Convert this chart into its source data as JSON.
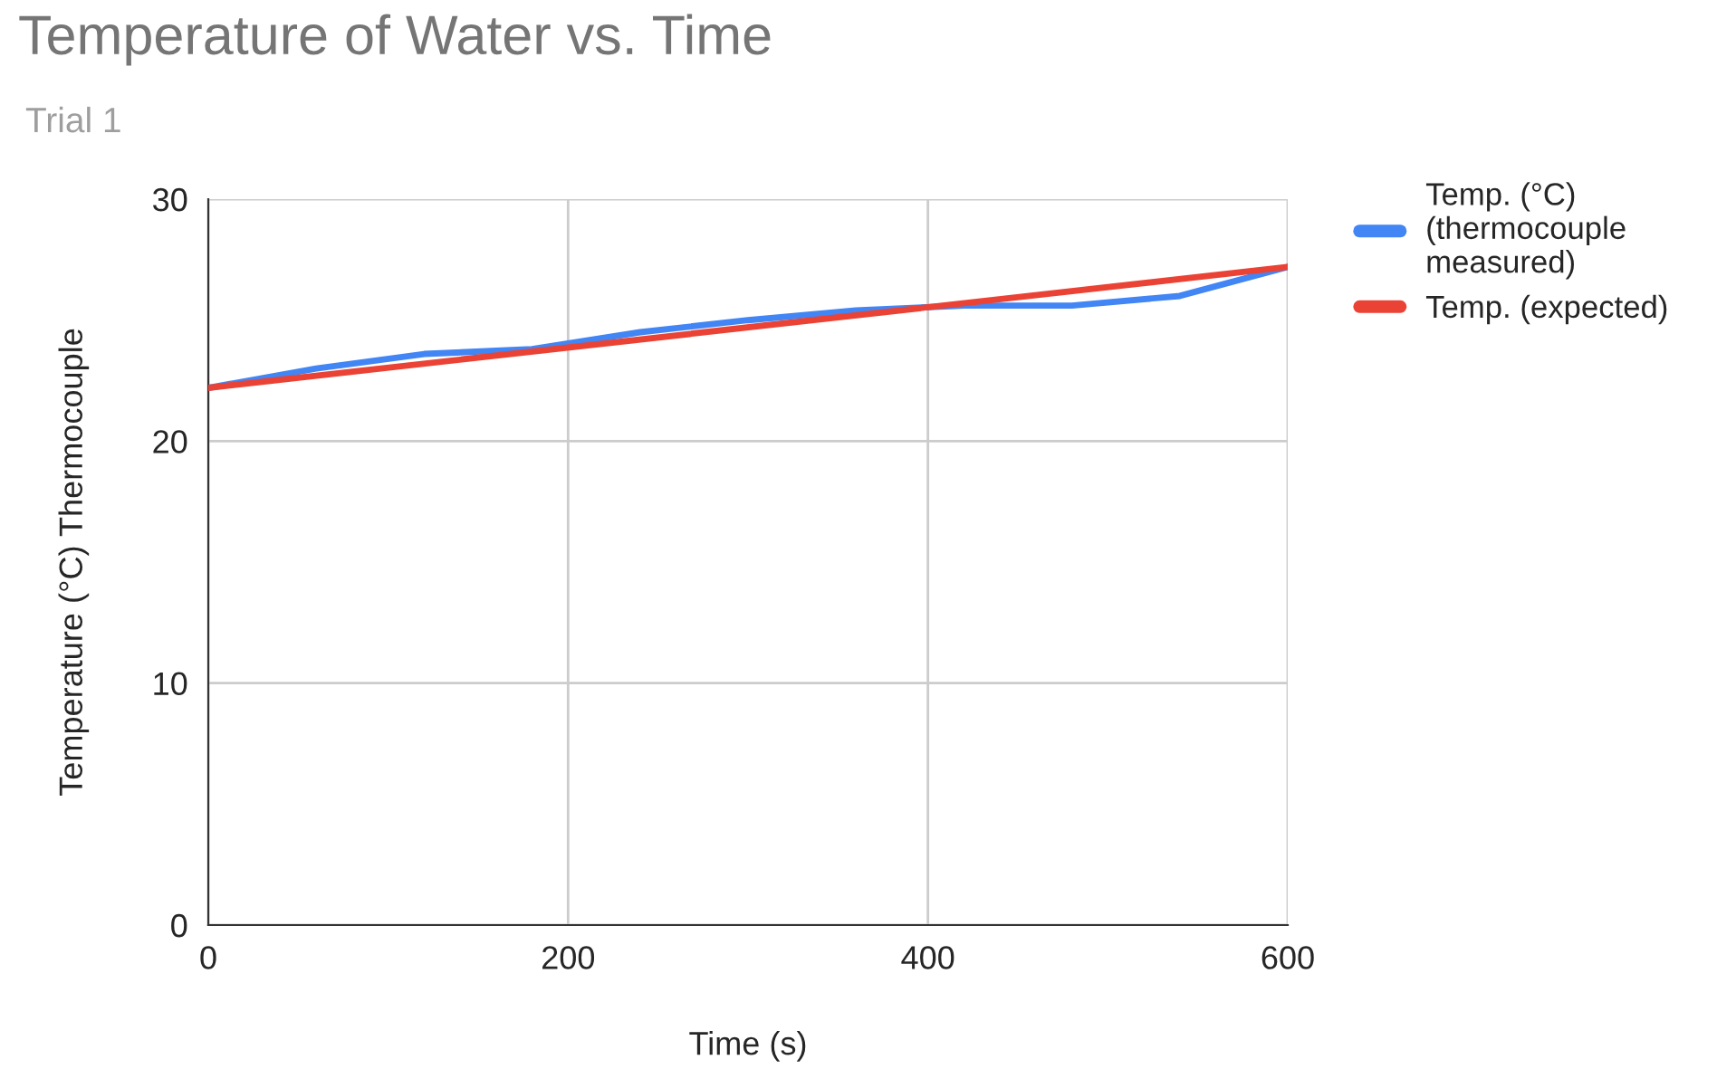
{
  "chart_data": {
    "type": "line",
    "title": "Temperature of Water vs. Time",
    "subtitle": "Trial 1",
    "xlabel": "Time (s)",
    "ylabel": "Temperature (°C) Thermocouple",
    "series": [
      {
        "name": "Temp. (°C) (thermocouple measured)",
        "color": "#4285f4",
        "x": [
          0,
          60,
          120,
          180,
          240,
          300,
          360,
          420,
          480,
          540,
          600
        ],
        "values": [
          22.2,
          23.0,
          23.6,
          23.8,
          24.5,
          25.0,
          25.4,
          25.6,
          25.6,
          26.0,
          27.2
        ]
      },
      {
        "name": "Temp. (expected)",
        "color": "#ea4335",
        "x": [
          0,
          600
        ],
        "values": [
          22.2,
          27.2
        ]
      }
    ],
    "xlim": [
      0,
      600
    ],
    "xticks": [
      0,
      200,
      400,
      600
    ],
    "ylim": [
      0,
      30
    ],
    "yticks": [
      0,
      10,
      20,
      30
    ],
    "grid": true,
    "legend": "top right",
    "marker": "none",
    "line_style": "solid"
  }
}
